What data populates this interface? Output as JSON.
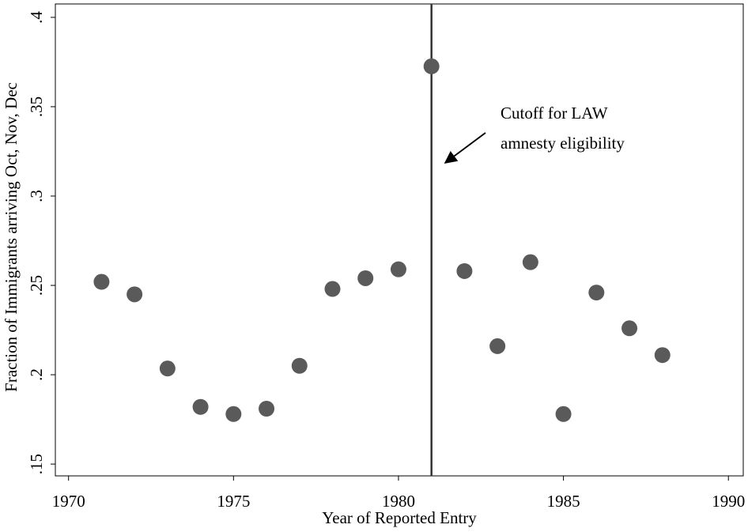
{
  "chart_data": {
    "type": "scatter",
    "xlabel": "Year of Reported Entry",
    "ylabel": "Fraction of Immigrants arriving Oct, Nov, Dec",
    "x": [
      1971,
      1972,
      1973,
      1974,
      1975,
      1976,
      1977,
      1978,
      1979,
      1980,
      1981,
      1982,
      1983,
      1984,
      1985,
      1986,
      1987,
      1988
    ],
    "series": [
      {
        "color": "#5a5a5a",
        "values": [
          0.252,
          0.245,
          0.2035,
          0.182,
          0.178,
          0.181,
          0.205,
          0.248,
          0.254,
          0.259,
          0.3726,
          0.258,
          0.216,
          0.263,
          0.178,
          0.246,
          0.226,
          0.211
        ]
      }
    ],
    "xlim": [
      1969.6,
      1990.45
    ],
    "xticks": [
      1970,
      1975,
      1980,
      1985,
      1990
    ],
    "ylim": [
      0.1434,
      0.4075
    ],
    "yticks": [
      {
        "value": 0.15,
        "label": ".15"
      },
      {
        "value": 0.2,
        "label": ".2"
      },
      {
        "value": 0.25,
        "label": ".25"
      },
      {
        "value": 0.3,
        "label": ".3"
      },
      {
        "value": 0.35,
        "label": ".35"
      },
      {
        "value": 0.4,
        "label": ".4"
      }
    ],
    "vline": 1981,
    "vline_color": "#333333",
    "annotation": [
      "Cutoff for LAW",
      "amnesty eligibility"
    ]
  }
}
